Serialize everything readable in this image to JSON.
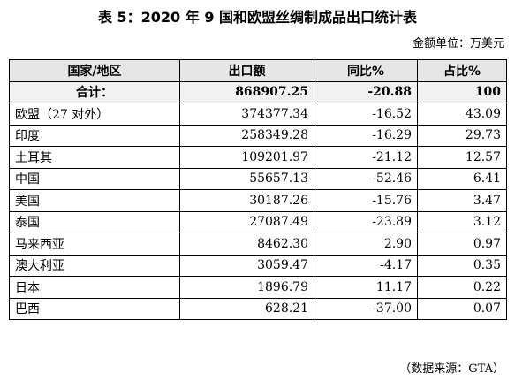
{
  "title": "表 5：2020 年 9 国和欧盟丝绸制成品出口统计表",
  "unit": "金额单位：万美元",
  "table": {
    "headers": [
      "国家/地区",
      "出口额",
      "同比%",
      "占比%"
    ],
    "total": [
      "合计：",
      "868907.25",
      "-20.88",
      "100"
    ],
    "rows": [
      [
        "欧盟（27 对外）",
        "374377.34",
        "-16.52",
        "43.09"
      ],
      [
        "印度",
        "258349.28",
        "-16.29",
        "29.73"
      ],
      [
        "土耳其",
        "109201.97",
        "-21.12",
        "12.57"
      ],
      [
        "中国",
        "55657.13",
        "-52.46",
        "6.41"
      ],
      [
        "美国",
        "30187.26",
        "-15.76",
        "3.47"
      ],
      [
        "泰国",
        "27087.49",
        "-23.89",
        "3.12"
      ],
      [
        "马来西亚",
        "8462.30",
        "2.90",
        "0.97"
      ],
      [
        "澳大利亚",
        "3059.47",
        "-4.17",
        "0.35"
      ],
      [
        "日本",
        "1896.79",
        "11.17",
        "0.22"
      ],
      [
        "巴西",
        "628.21",
        "-37.00",
        "0.07"
      ]
    ]
  },
  "source": "（数据来源：GTA）"
}
